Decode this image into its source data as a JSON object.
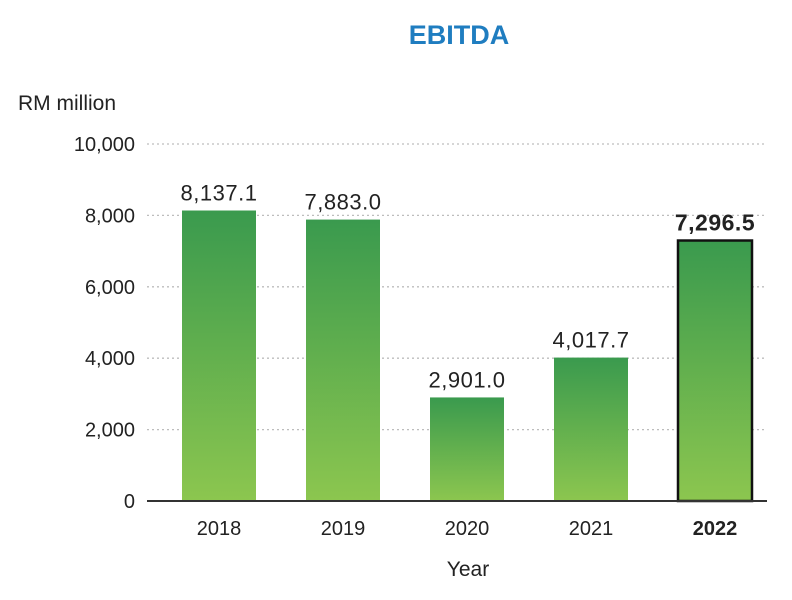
{
  "chart_data": {
    "type": "bar",
    "title": "EBITDA",
    "ylabel": "RM million",
    "xlabel": "Year",
    "categories": [
      "2018",
      "2019",
      "2020",
      "2021",
      "2022"
    ],
    "values": [
      8137.1,
      7883.0,
      2901.0,
      4017.7,
      7296.5
    ],
    "value_labels": [
      "8,137.1",
      "7,883.0",
      "2,901.0",
      "4,017.7",
      "7,296.5"
    ],
    "highlight_index": 4,
    "ylim": [
      0,
      10000
    ],
    "yticks": [
      0,
      2000,
      4000,
      6000,
      8000,
      10000
    ],
    "ytick_labels": [
      "0",
      "2,000",
      "4,000",
      "6,000",
      "8,000",
      "10,000"
    ],
    "grid": true,
    "colors": {
      "title": "#1f7dc0",
      "bar_top": "#3a9a4e",
      "bar_bottom": "#8cc64f",
      "highlight_border": "#111111"
    }
  }
}
